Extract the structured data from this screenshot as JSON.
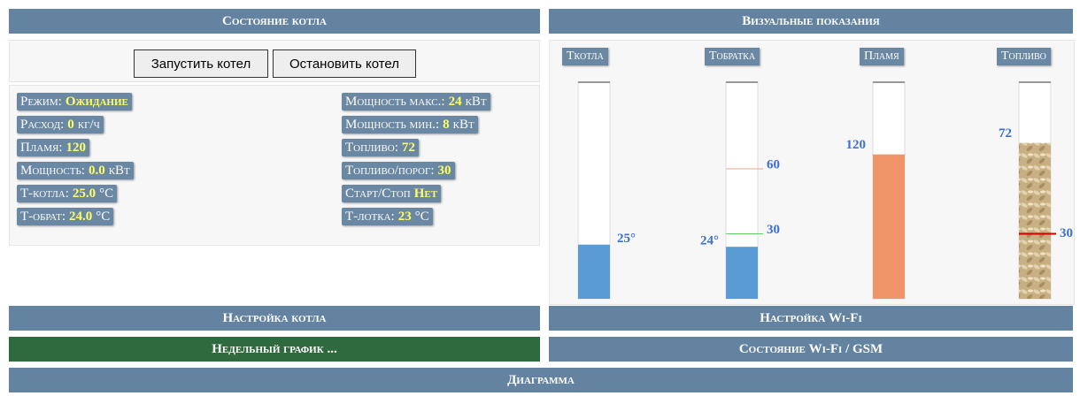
{
  "left_panel": {
    "title": "Состояние котла",
    "buttons": [
      "Запустить котел",
      "Остановить котел"
    ],
    "status_left": [
      {
        "label": "Режим:",
        "value": "Ожидание"
      },
      {
        "label": "Расход:",
        "value": 0,
        "unit": "кг/ч"
      },
      {
        "label": "Пламя:",
        "value": 120
      },
      {
        "label": "Мощность:",
        "value": "0.0",
        "unit": "кВт"
      },
      {
        "label": "Т-котла:",
        "value": "25.0",
        "unit": "°C"
      },
      {
        "label": "Т-обрат:",
        "value": "24.0",
        "unit": "°C"
      }
    ],
    "status_right": [
      {
        "label": "Мощность макс.:",
        "value": 24,
        "unit": "кВт"
      },
      {
        "label": "Мощность мин.:",
        "value": 8,
        "unit": "кВт"
      },
      {
        "label": "Топливо:",
        "value": 72
      },
      {
        "label": "Топливо/порог:",
        "value": 30
      },
      {
        "label": "Старт/Стоп",
        "value": "Нет"
      },
      {
        "label": "Т-лотка:",
        "value": 23,
        "unit": "°C"
      }
    ]
  },
  "right_panel": {
    "title": "Визуальные показания",
    "gauges": [
      {
        "name": "Ткотла",
        "value": 25,
        "value_label": "25°",
        "range": [
          0,
          100
        ],
        "color": "#5b9bd5"
      },
      {
        "name": "Тобратка",
        "value": 24,
        "value_label": "24°",
        "range": [
          0,
          100
        ],
        "color": "#5b9bd5",
        "marks": [
          {
            "value": 60,
            "color": "#f4a582"
          },
          {
            "value": 30,
            "color": "#66cc66"
          }
        ]
      },
      {
        "name": "Пламя",
        "value": 120,
        "range": [
          0,
          180
        ],
        "color": "#f0956a"
      },
      {
        "name": "Топливо",
        "value": 72,
        "range": [
          0,
          100
        ],
        "color": "#c9b083",
        "marks": [
          {
            "value": 30,
            "color": "#d00000"
          }
        ]
      }
    ]
  },
  "menu": [
    {
      "text": "Настройка котла"
    },
    {
      "text": "Настройка Wi-Fi"
    },
    {
      "text": "Недельный график ..."
    },
    {
      "text": "Состояние Wi-Fi / GSM"
    },
    {
      "text": "Диаграмма"
    }
  ]
}
